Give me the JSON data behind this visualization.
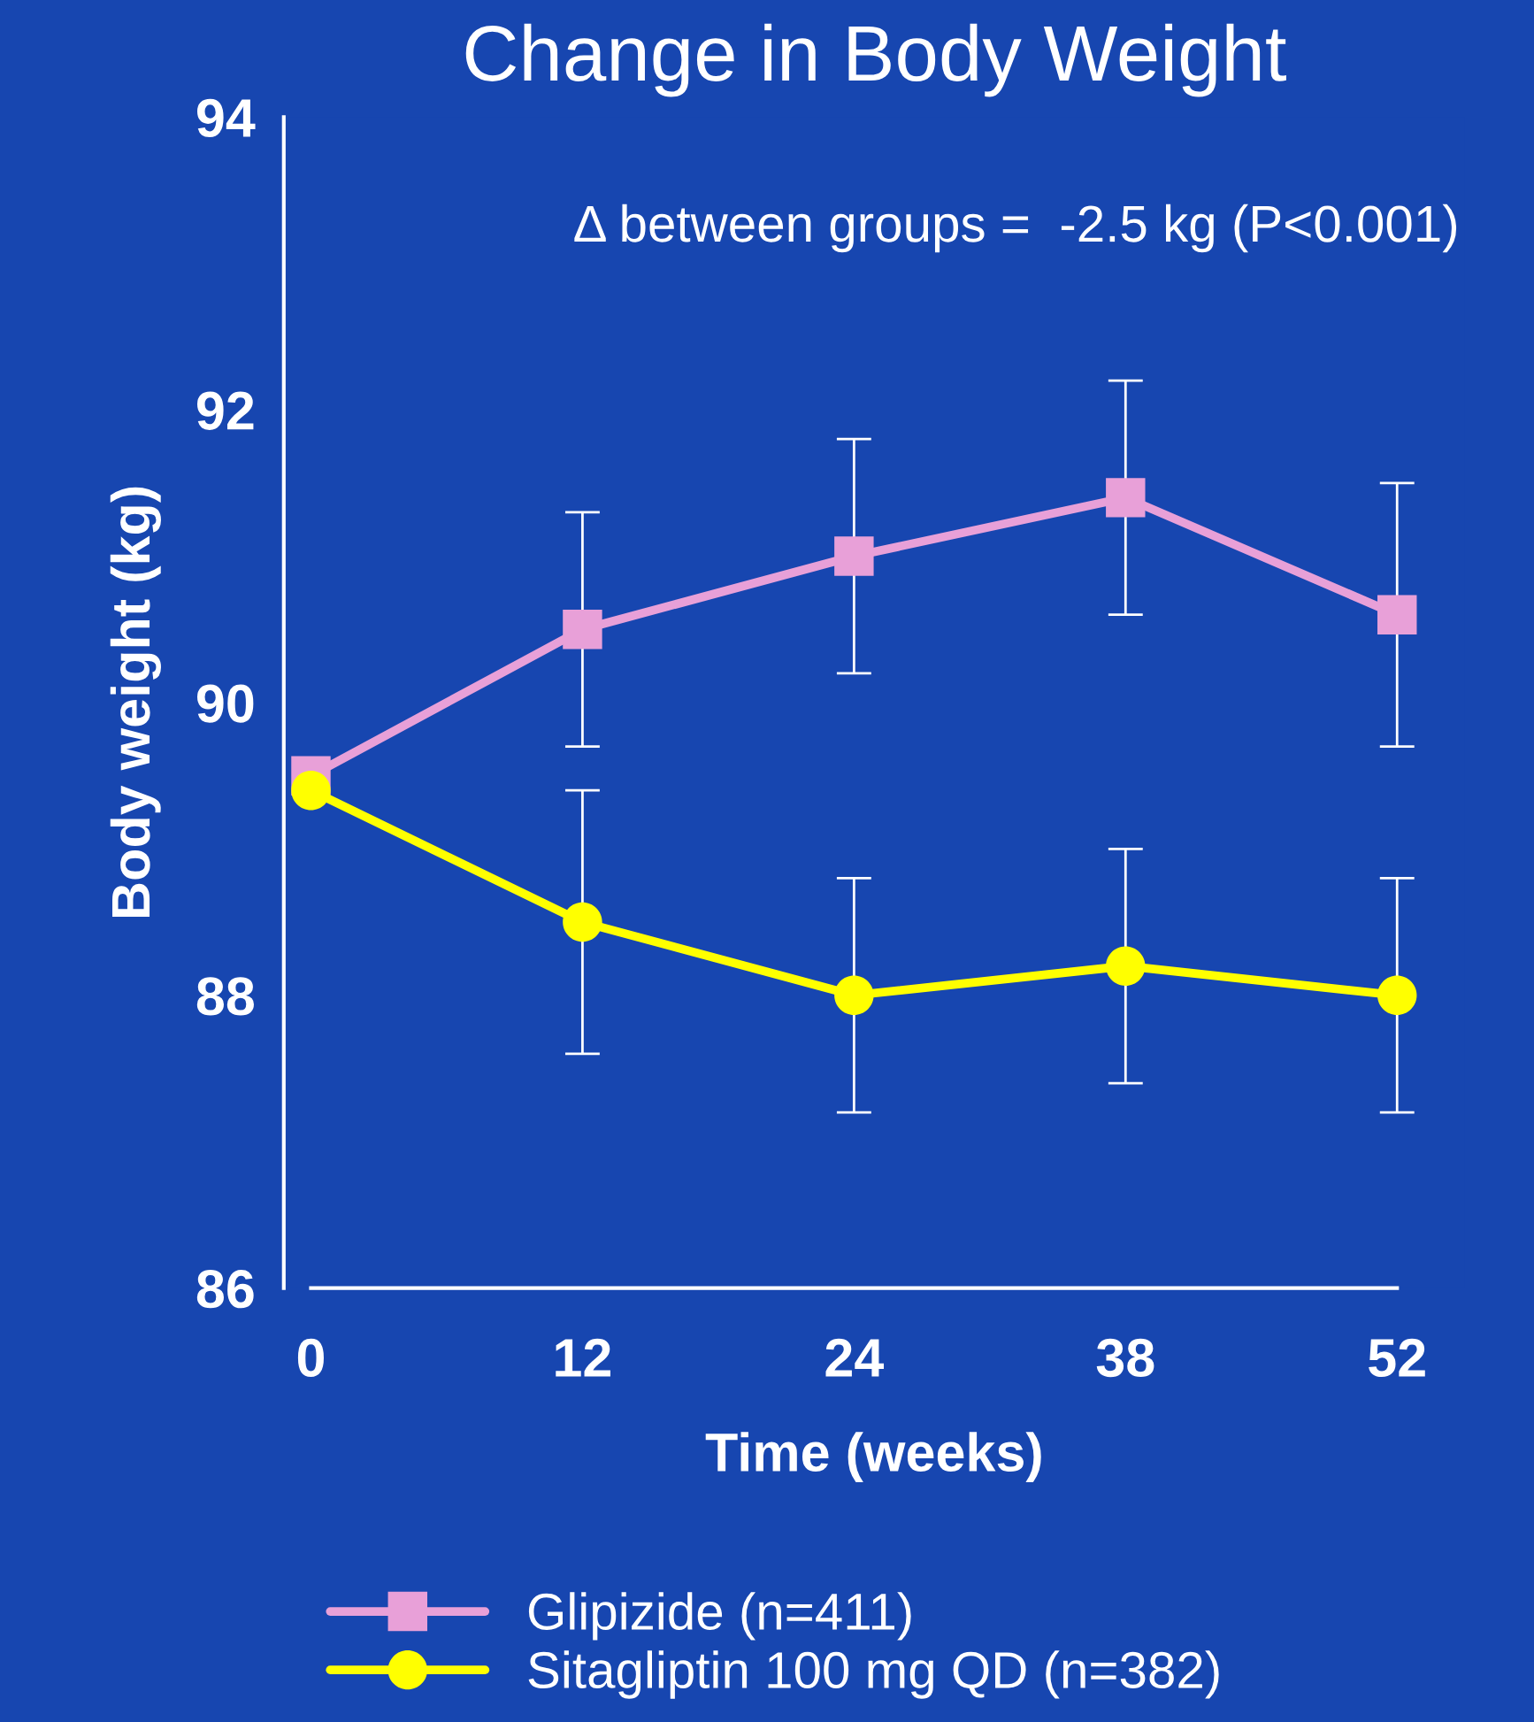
{
  "chart_data": {
    "type": "line",
    "title": "Change in Body Weight",
    "xlabel": "Time (weeks)",
    "ylabel": "Body weight (kg)",
    "categories": [
      "0",
      "12",
      "24",
      "38",
      "52"
    ],
    "ylim": [
      86,
      94
    ],
    "yticks": [
      86,
      88,
      90,
      92,
      94
    ],
    "grid": false,
    "legend": "bottom",
    "line_style": "solid",
    "annotations": [
      "Δ between groups =  -2.5 kg (P<0.001)"
    ],
    "series": [
      {
        "name": "Glipizide (n=411)",
        "color": "#e8a0d8",
        "marker": "square",
        "values": [
          89.5,
          90.5,
          91.0,
          91.4,
          90.6
        ],
        "errors": [
          null,
          0.8,
          0.8,
          0.8,
          [
            89.7,
            91.5
          ]
        ]
      },
      {
        "name": "Sitagliptin 100 mg QD (n=382)",
        "color": "#ffff00",
        "marker": "circle",
        "values": [
          89.4,
          88.5,
          88.0,
          88.2,
          88.0
        ],
        "errors": [
          null,
          0.9,
          0.8,
          0.8,
          0.8
        ]
      }
    ]
  }
}
